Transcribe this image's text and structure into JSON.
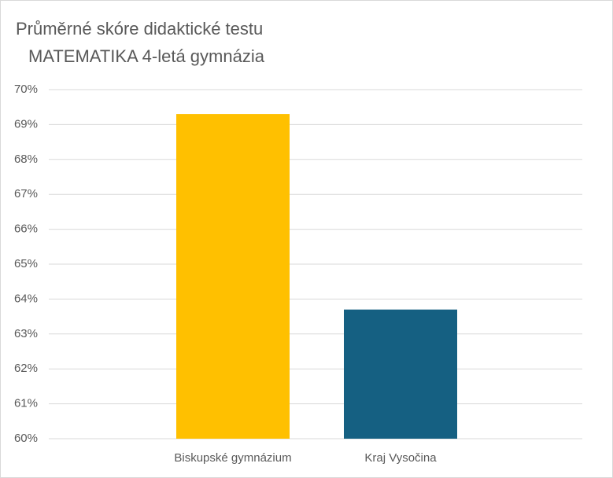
{
  "chart_data": {
    "type": "bar",
    "title": "Průměrné skóre didaktické testu",
    "subtitle": "MATEMATIKA 4-letá gymnázia",
    "categories": [
      "Biskupské gymnázium",
      "Kraj Vysočina"
    ],
    "values": [
      69.3,
      63.7
    ],
    "colors": [
      "#ffc000",
      "#156082"
    ],
    "ylim": [
      60,
      70
    ],
    "yticks": [
      {
        "value": 60,
        "label": "60%"
      },
      {
        "value": 61,
        "label": "61%"
      },
      {
        "value": 62,
        "label": "62%"
      },
      {
        "value": 63,
        "label": "63%"
      },
      {
        "value": 64,
        "label": "64%"
      },
      {
        "value": 65,
        "label": "65%"
      },
      {
        "value": 66,
        "label": "66%"
      },
      {
        "value": 67,
        "label": "67%"
      },
      {
        "value": 68,
        "label": "68%"
      },
      {
        "value": 69,
        "label": "69%"
      },
      {
        "value": 70,
        "label": "70%"
      }
    ],
    "grid": true
  }
}
